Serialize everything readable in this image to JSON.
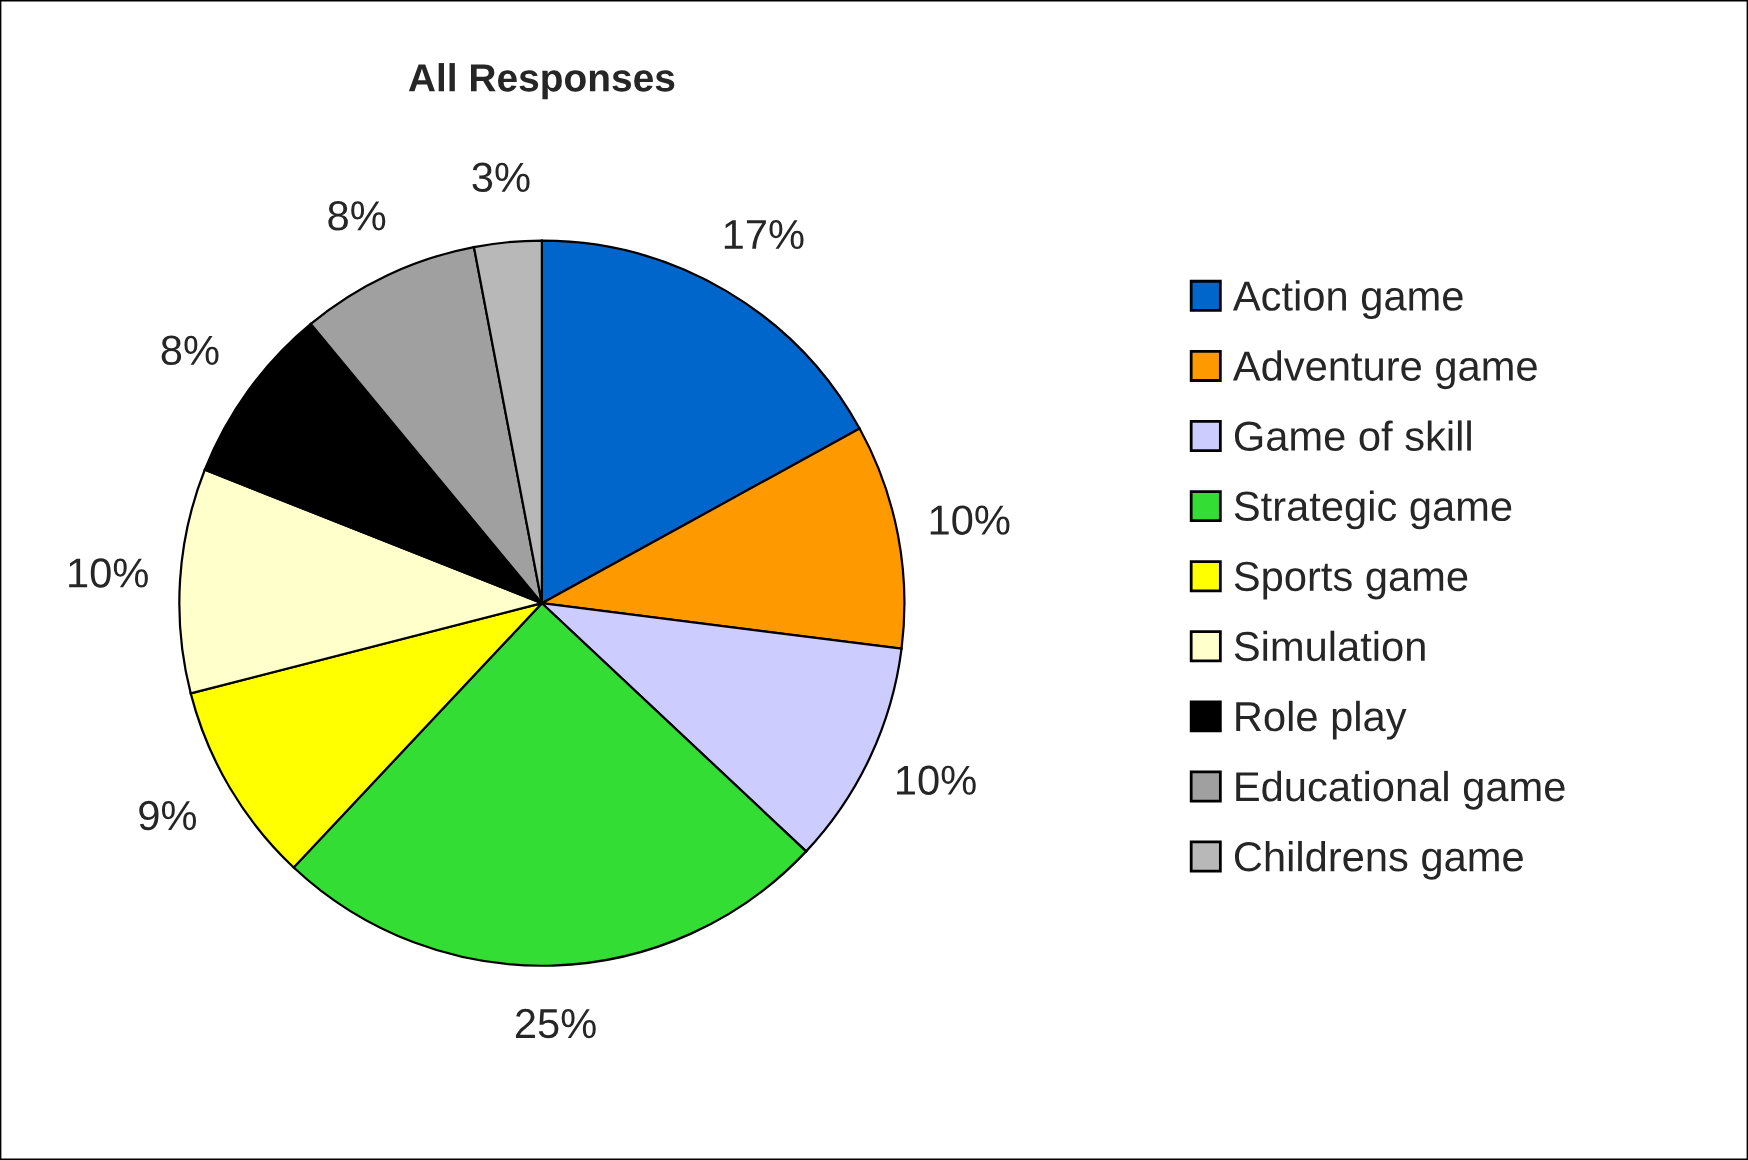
{
  "chart_data": {
    "type": "pie",
    "title": "All Responses",
    "categories": [
      "Action game",
      "Adventure game",
      "Game of skill",
      "Strategic game",
      "Sports game",
      "Simulation",
      "Role play",
      "Educational game",
      "Childrens game"
    ],
    "values": [
      17,
      10,
      10,
      25,
      9,
      10,
      8,
      8,
      3
    ],
    "colors": [
      "#0066cc",
      "#ff9900",
      "#ccccff",
      "#33dd33",
      "#ffff00",
      "#ffffcc",
      "#000000",
      "#a0a0a0",
      "#b8b8b8"
    ],
    "value_labels": [
      "17%",
      "10%",
      "10%",
      "25%",
      "9%",
      "10%",
      "8%",
      "8%",
      "3%"
    ],
    "legend": "right"
  }
}
